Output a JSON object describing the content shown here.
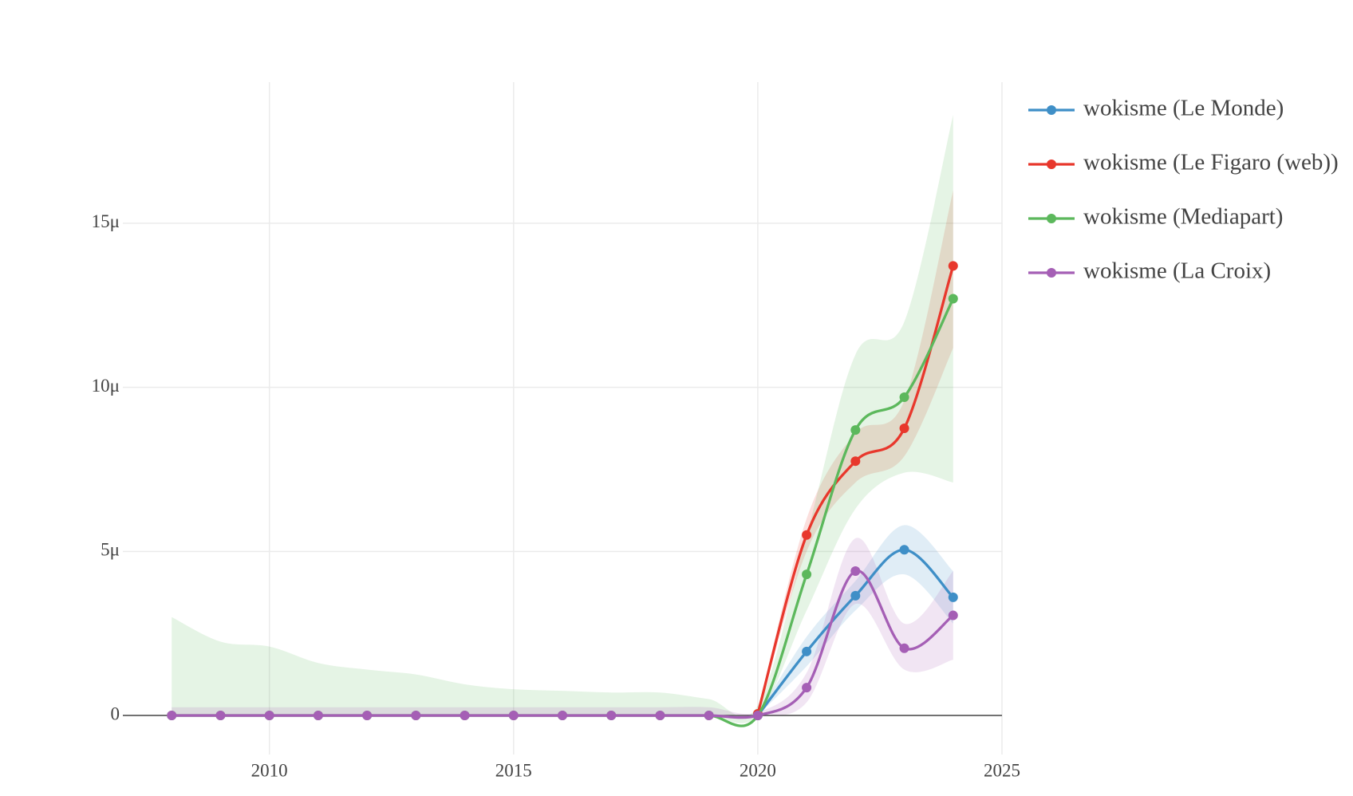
{
  "chart_data": {
    "type": "line",
    "smooth": true,
    "x": [
      2008,
      2009,
      2010,
      2011,
      2012,
      2013,
      2014,
      2015,
      2016,
      2017,
      2018,
      2019,
      2020,
      2021,
      2022,
      2023,
      2024
    ],
    "xlim": [
      2007,
      2025
    ],
    "xticks": [
      2010,
      2015,
      2020,
      2025
    ],
    "ylim": [
      -1.19e-06,
      1.93e-05
    ],
    "yticks": [
      0,
      {
        "value": 5e-06,
        "label": "5μ"
      },
      {
        "value": 1e-05,
        "label": "10μ"
      },
      {
        "value": 1.5e-05,
        "label": "15μ"
      }
    ],
    "grid": true,
    "legend": "right",
    "series": [
      {
        "name": "wokisme (Le Monde)",
        "color": "#3f8fc7",
        "values": [
          null,
          null,
          null,
          null,
          null,
          null,
          null,
          null,
          null,
          null,
          null,
          null,
          0,
          1.95e-06,
          3.65e-06,
          5.05e-06,
          3.6e-06
        ],
        "upper": [
          null,
          null,
          null,
          null,
          null,
          null,
          null,
          null,
          null,
          null,
          null,
          null,
          0,
          2.4e-06,
          4.1e-06,
          5.8e-06,
          4.4e-06
        ],
        "lower": [
          null,
          null,
          null,
          null,
          null,
          null,
          null,
          null,
          null,
          null,
          null,
          null,
          0,
          1.5e-06,
          3.2e-06,
          4.3e-06,
          2.8e-06
        ]
      },
      {
        "name": "wokisme (Le Figaro (web))",
        "color": "#e8372c",
        "values": [
          null,
          null,
          null,
          null,
          null,
          null,
          null,
          null,
          null,
          null,
          null,
          null,
          5e-08,
          5.5e-06,
          7.75e-06,
          8.75e-06,
          1.37e-05
        ],
        "upper": [
          null,
          null,
          null,
          null,
          null,
          null,
          null,
          null,
          null,
          null,
          null,
          null,
          1e-07,
          6e-06,
          8.6e-06,
          9.6e-06,
          1.6e-05
        ],
        "lower": [
          null,
          null,
          null,
          null,
          null,
          null,
          null,
          null,
          null,
          null,
          null,
          null,
          0,
          5e-06,
          7.1e-06,
          7.9e-06,
          1.12e-05
        ]
      },
      {
        "name": "wokisme (Mediapart)",
        "color": "#5cb85c",
        "values": [
          0,
          0,
          0,
          0,
          0,
          0,
          0,
          0,
          0,
          0,
          0,
          0,
          0,
          4.3e-06,
          8.7e-06,
          9.7e-06,
          1.27e-05
        ],
        "upper": [
          3e-06,
          2.25e-06,
          2.1e-06,
          1.6e-06,
          1.4e-06,
          1.25e-06,
          9.5e-07,
          8e-07,
          7.5e-07,
          7e-07,
          7e-07,
          5e-07,
          3e-07,
          5.5e-06,
          1.1e-05,
          1.2e-05,
          1.83e-05
        ],
        "lower": [
          0,
          0,
          0,
          0,
          0,
          0,
          0,
          0,
          0,
          0,
          0,
          0,
          0,
          3.2e-06,
          6.3e-06,
          7.4e-06,
          7.1e-06
        ]
      },
      {
        "name": "wokisme (La Croix)",
        "color": "#a55fb5",
        "values": [
          0,
          0,
          0,
          0,
          0,
          0,
          0,
          0,
          0,
          0,
          0,
          0,
          0,
          8.5e-07,
          4.4e-06,
          2.05e-06,
          3.05e-06
        ],
        "upper": [
          2.5e-07,
          2.5e-07,
          2.5e-07,
          2.5e-07,
          2.5e-07,
          2.5e-07,
          2.5e-07,
          2.5e-07,
          2.5e-07,
          2.5e-07,
          2.5e-07,
          2.5e-07,
          1e-07,
          1.3e-06,
          5.4e-06,
          2.8e-06,
          4.4e-06
        ],
        "lower": [
          0,
          0,
          0,
          0,
          0,
          0,
          0,
          0,
          0,
          0,
          0,
          0,
          0,
          4e-07,
          3.4e-06,
          1.4e-06,
          1.7e-06
        ]
      }
    ]
  }
}
